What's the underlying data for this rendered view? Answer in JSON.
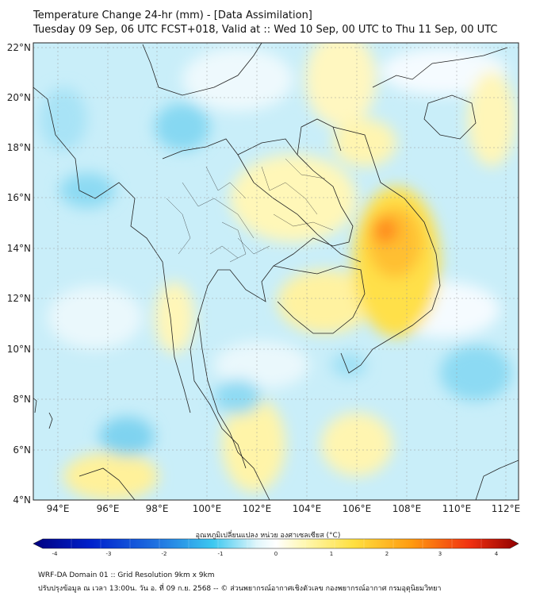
{
  "header": {
    "title": "Temperature Change 24-hr (mm) - [Data Assimilation]",
    "subtitle": "Tuesday 09 Sep, 06 UTC FCST+018, Valid at :: Wed 10 Sep, 00 UTC to Thu 11 Sep, 00 UTC"
  },
  "map": {
    "lat_range": [
      4,
      22
    ],
    "lon_range": [
      93,
      112.5
    ],
    "lat_ticks": [
      "22°N",
      "20°N",
      "18°N",
      "16°N",
      "14°N",
      "12°N",
      "10°N",
      "8°N",
      "6°N",
      "4°N"
    ],
    "lon_ticks": [
      "94°E",
      "96°E",
      "98°E",
      "100°E",
      "102°E",
      "104°E",
      "106°E",
      "108°E",
      "110°E",
      "112°E"
    ],
    "background_color": "#ffffff",
    "grid": true
  },
  "colorbar": {
    "title": "อุณหภูมิเปลี่ยนแปลง หน่วย องศาเซลเซียส (°C)",
    "tick_labels": [
      "-4",
      "-3",
      "-2",
      "-1",
      "0",
      "1",
      "2",
      "3",
      "4"
    ],
    "range": [
      -4,
      4
    ],
    "colors": [
      "#000080",
      "#0022cc",
      "#1e6fe0",
      "#3cc8f0",
      "#e0f6fb",
      "#ffffff",
      "#fff7b0",
      "#ffe040",
      "#ff9a10",
      "#f03010",
      "#900000"
    ]
  },
  "footer": {
    "line1": "WRF-DA Domain 01 :: Grid Resolution 9km x 9km",
    "line2": "ปรับปรุงข้อมูล ณ เวลา 13:00น. วัน อ. ที่ 09 ก.ย. 2568 -- © ส่วนพยากรณ์อากาศเชิงตัวเลข กองพยากรณ์อากาศ กรมอุตุนิยมวิทยา"
  }
}
